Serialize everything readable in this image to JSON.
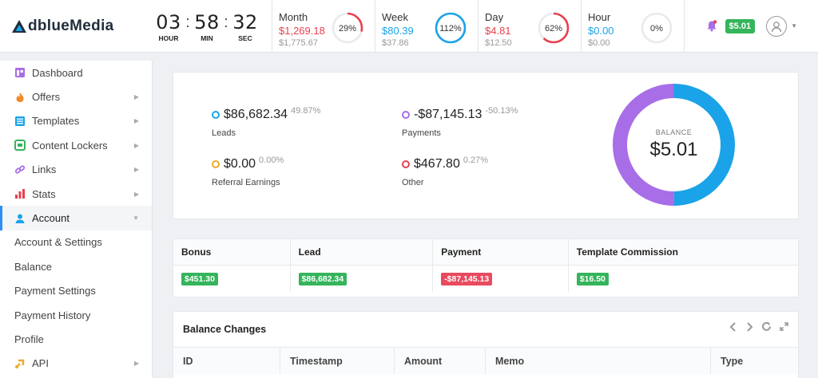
{
  "brand": {
    "logo_text": "dblueMedia"
  },
  "timer": [
    {
      "value": "03",
      "label": "HOUR"
    },
    {
      "value": "58",
      "label": "MIN"
    },
    {
      "value": "32",
      "label": "SEC"
    }
  ],
  "stats": [
    {
      "name": "Month",
      "value": "$1,269.18",
      "sub": "$1,775.67",
      "percent_label": "29%",
      "percent": 29,
      "value_color": "#e8404f",
      "ring_color": "#e8404f"
    },
    {
      "name": "Week",
      "value": "$80.39",
      "sub": "$37.86",
      "percent_label": "112%",
      "percent": 100,
      "value_color": "#1aa3e8",
      "ring_color": "#1aa3e8"
    },
    {
      "name": "Day",
      "value": "$4.81",
      "sub": "$12.50",
      "percent_label": "62%",
      "percent": 62,
      "value_color": "#e8404f",
      "ring_color": "#e8404f"
    },
    {
      "name": "Hour",
      "value": "$0.00",
      "sub": "$0.00",
      "percent_label": "0%",
      "percent": 0,
      "value_color": "#1aa3e8",
      "ring_color": "#1aa3e8"
    }
  ],
  "header": {
    "balance_badge": "$5.01",
    "notification_icon": "bell-icon",
    "avatar_icon": "user-avatar-icon"
  },
  "sidebar": {
    "items": [
      {
        "label": "Dashboard",
        "icon": "dashboard-icon",
        "has_arrow": false
      },
      {
        "label": "Offers",
        "icon": "fire-icon",
        "has_arrow": true
      },
      {
        "label": "Templates",
        "icon": "templates-icon",
        "has_arrow": true
      },
      {
        "label": "Content Lockers",
        "icon": "locker-icon",
        "has_arrow": true
      },
      {
        "label": "Links",
        "icon": "link-icon",
        "has_arrow": true
      },
      {
        "label": "Stats",
        "icon": "stats-icon",
        "has_arrow": true
      },
      {
        "label": "Account",
        "icon": "user-icon",
        "has_arrow": true,
        "active": true
      }
    ],
    "sub_items": [
      "Account & Settings",
      "Balance",
      "Payment Settings",
      "Payment History",
      "Profile"
    ],
    "api_item": {
      "label": "API",
      "icon": "api-icon"
    }
  },
  "summary": {
    "items": [
      {
        "amount": "$86,682.34",
        "percent": "49.87%",
        "label": "Leads",
        "color": "#1aa3e8"
      },
      {
        "amount": "-$87,145.13",
        "percent": "-50.13%",
        "label": "Payments",
        "color": "#a86ee8"
      },
      {
        "amount": "$0.00",
        "percent": "0.00%",
        "label": "Referral Earnings",
        "color": "#f0a92a"
      },
      {
        "amount": "$467.80",
        "percent": "0.27%",
        "label": "Other",
        "color": "#e8404f"
      }
    ],
    "balance_label": "BALANCE",
    "balance_value": "$5.01",
    "donut": [
      {
        "share": 49.87,
        "color": "#1aa3e8"
      },
      {
        "share": 50.13,
        "color": "#a86ee8"
      }
    ]
  },
  "breakdown": {
    "columns": [
      "Bonus",
      "Lead",
      "Payment",
      "Template Commission"
    ],
    "values": [
      {
        "text": "$451.30",
        "tone": "green"
      },
      {
        "text": "$86,682.34",
        "tone": "green"
      },
      {
        "text": "-$87,145.13",
        "tone": "red"
      },
      {
        "text": "$16.50",
        "tone": "green"
      }
    ]
  },
  "balance_changes": {
    "title": "Balance Changes",
    "columns": [
      "ID",
      "Timestamp",
      "Amount",
      "Memo",
      "Type"
    ],
    "tools": [
      "chevron-left-icon",
      "chevron-right-icon",
      "refresh-icon",
      "expand-icon"
    ]
  }
}
